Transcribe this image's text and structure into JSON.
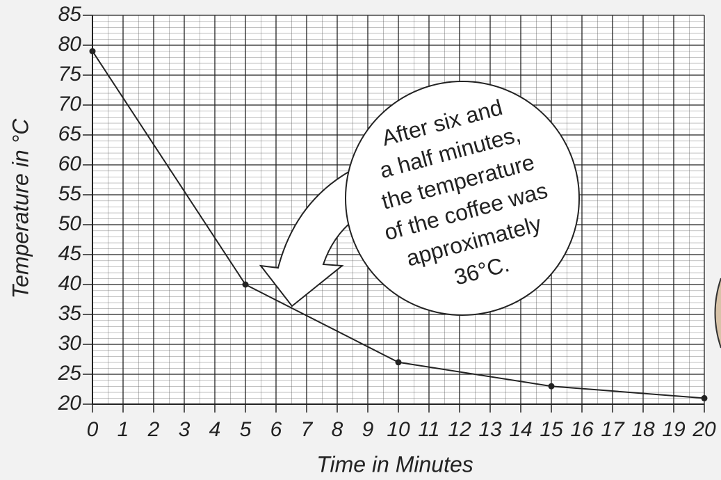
{
  "chart_data": {
    "type": "line",
    "x": [
      0,
      5,
      10,
      15,
      20
    ],
    "values": [
      79,
      40,
      27,
      23,
      21
    ],
    "color": "#222222",
    "xlim": [
      0,
      20
    ],
    "xticks": [
      0,
      1,
      2,
      3,
      4,
      5,
      6,
      7,
      8,
      9,
      10,
      11,
      12,
      13,
      14,
      15,
      16,
      17,
      18,
      19,
      20
    ],
    "ylim": [
      20,
      85
    ],
    "yticks": [
      20,
      25,
      30,
      35,
      40,
      45,
      50,
      55,
      60,
      65,
      70,
      75,
      80,
      85
    ],
    "grid": true,
    "xlabel": "Time in Minutes",
    "ylabel": "Temperature in °C",
    "annotation": [
      "After six and",
      "a half minutes,",
      "the temperature",
      "of the coffee was",
      "approximately",
      "36°C."
    ]
  }
}
